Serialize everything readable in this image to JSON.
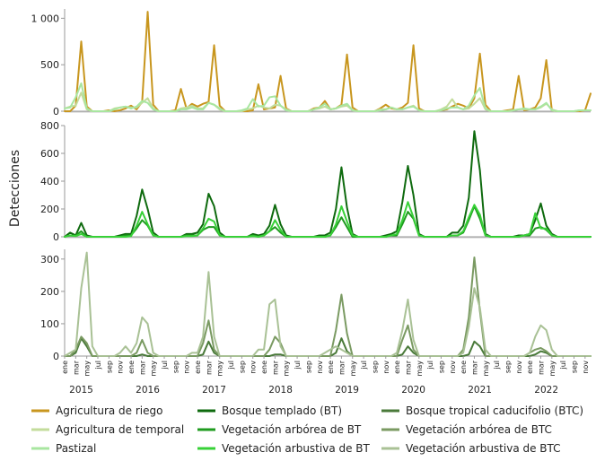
{
  "chart_data": {
    "type": "line",
    "ylabel": "Detecciones",
    "month_tick_labels": [
      "ene",
      "mar",
      "may",
      "jul",
      "sep",
      "nov"
    ],
    "years": [
      "2015",
      "2016",
      "2017",
      "2018",
      "2019",
      "2020",
      "2021",
      "2022"
    ],
    "months_per_series": 96,
    "legend_placement": "bottom",
    "colors": {
      "Agricultura de riego": "#c8961e",
      "Agricultura de temporal": "#c3dc9b",
      "Pastizal": "#a8e6a0",
      "Bosque templado (BT)": "#0e6a0e",
      "Vegetación arbórea de BT": "#1f9b1f",
      "Vegetación arbustiva de BT": "#37d137",
      "Bosque tropical caducifolio (BTC)": "#4a7a3a",
      "Vegetación arbórea de BTC": "#7a9a62",
      "Vegetación arbustiva de BTC": "#a9c195"
    },
    "panels": [
      {
        "id": "top",
        "ylim": [
          0,
          1100
        ],
        "yticks": [
          0,
          500,
          1000
        ],
        "ytick_labels": [
          "0",
          "500",
          "1 000"
        ],
        "series": [
          {
            "name": "Agricultura de riego",
            "values": [
              0,
              0,
              60,
              750,
              50,
              0,
              0,
              0,
              10,
              0,
              10,
              30,
              60,
              20,
              100,
              1070,
              70,
              0,
              0,
              0,
              10,
              240,
              30,
              80,
              50,
              80,
              100,
              710,
              60,
              0,
              0,
              0,
              0,
              0,
              10,
              290,
              20,
              30,
              40,
              380,
              30,
              0,
              0,
              0,
              0,
              30,
              40,
              110,
              20,
              30,
              70,
              610,
              40,
              0,
              0,
              0,
              0,
              30,
              70,
              30,
              20,
              40,
              90,
              710,
              30,
              0,
              0,
              0,
              10,
              20,
              50,
              80,
              60,
              30,
              140,
              620,
              70,
              0,
              0,
              0,
              10,
              20,
              380,
              10,
              20,
              40,
              140,
              550,
              10,
              0,
              0,
              0,
              0,
              0,
              10,
              190
            ]
          },
          {
            "name": "Agricultura de temporal",
            "values": [
              30,
              50,
              60,
              200,
              20,
              0,
              0,
              0,
              0,
              30,
              40,
              50,
              40,
              40,
              90,
              140,
              30,
              0,
              0,
              0,
              0,
              30,
              40,
              60,
              30,
              30,
              90,
              70,
              20,
              0,
              0,
              0,
              0,
              20,
              30,
              60,
              40,
              30,
              70,
              60,
              20,
              0,
              0,
              0,
              0,
              20,
              30,
              50,
              20,
              30,
              50,
              60,
              10,
              0,
              0,
              0,
              0,
              20,
              20,
              40,
              20,
              20,
              40,
              60,
              10,
              0,
              0,
              0,
              20,
              50,
              130,
              40,
              20,
              30,
              80,
              140,
              20,
              0,
              0,
              0,
              0,
              10,
              20,
              20,
              20,
              20,
              40,
              80,
              20,
              0,
              0,
              0,
              0,
              10,
              10,
              10
            ]
          },
          {
            "name": "Pastizal",
            "values": [
              30,
              40,
              150,
              300,
              30,
              0,
              0,
              0,
              0,
              20,
              40,
              50,
              30,
              50,
              110,
              90,
              20,
              0,
              0,
              0,
              0,
              20,
              20,
              40,
              20,
              20,
              90,
              70,
              30,
              0,
              0,
              0,
              10,
              30,
              130,
              50,
              60,
              150,
              160,
              60,
              10,
              0,
              0,
              0,
              0,
              20,
              40,
              80,
              20,
              30,
              60,
              80,
              10,
              0,
              0,
              0,
              0,
              10,
              20,
              40,
              20,
              20,
              40,
              50,
              10,
              0,
              0,
              0,
              10,
              30,
              40,
              40,
              20,
              60,
              170,
              250,
              30,
              0,
              0,
              0,
              0,
              10,
              20,
              30,
              20,
              20,
              50,
              90,
              10,
              0,
              0,
              0,
              0,
              10,
              10,
              10
            ]
          }
        ]
      },
      {
        "id": "middle",
        "ylim": [
          0,
          800
        ],
        "yticks": [
          0,
          200,
          400,
          600,
          800
        ],
        "ytick_labels": [
          "0",
          "200",
          "400",
          "600",
          "800"
        ],
        "series": [
          {
            "name": "Bosque templado (BT)",
            "values": [
              0,
              30,
              10,
              100,
              10,
              0,
              0,
              0,
              0,
              0,
              10,
              20,
              20,
              150,
              340,
              200,
              30,
              0,
              0,
              0,
              0,
              0,
              20,
              20,
              30,
              90,
              310,
              220,
              30,
              0,
              0,
              0,
              0,
              0,
              20,
              10,
              20,
              80,
              230,
              90,
              10,
              0,
              0,
              0,
              0,
              0,
              10,
              10,
              30,
              200,
              500,
              210,
              20,
              0,
              0,
              0,
              0,
              0,
              10,
              20,
              40,
              250,
              510,
              300,
              20,
              0,
              0,
              0,
              0,
              0,
              30,
              30,
              80,
              280,
              760,
              480,
              20,
              0,
              0,
              0,
              0,
              0,
              10,
              10,
              20,
              120,
              240,
              80,
              20,
              0,
              0,
              0,
              0,
              0,
              0,
              0
            ]
          },
          {
            "name": "Vegetación arbórea de BT",
            "values": [
              0,
              10,
              10,
              40,
              0,
              0,
              0,
              0,
              0,
              0,
              0,
              10,
              10,
              60,
              120,
              80,
              10,
              0,
              0,
              0,
              0,
              0,
              10,
              10,
              10,
              50,
              70,
              70,
              10,
              0,
              0,
              0,
              0,
              0,
              10,
              0,
              10,
              40,
              70,
              30,
              0,
              0,
              0,
              0,
              0,
              0,
              0,
              0,
              10,
              70,
              140,
              70,
              0,
              0,
              0,
              0,
              0,
              0,
              0,
              10,
              10,
              90,
              180,
              130,
              10,
              0,
              0,
              0,
              0,
              0,
              10,
              10,
              30,
              120,
              220,
              130,
              10,
              0,
              0,
              0,
              0,
              0,
              0,
              10,
              10,
              60,
              70,
              50,
              10,
              0,
              0,
              0,
              0,
              0,
              0,
              0
            ]
          },
          {
            "name": "Vegetación arbustiva de BT",
            "values": [
              0,
              10,
              5,
              20,
              0,
              0,
              0,
              0,
              0,
              0,
              0,
              0,
              5,
              80,
              180,
              90,
              10,
              0,
              0,
              0,
              0,
              0,
              5,
              5,
              10,
              60,
              130,
              110,
              10,
              0,
              0,
              0,
              0,
              0,
              5,
              0,
              10,
              40,
              120,
              50,
              0,
              0,
              0,
              0,
              0,
              0,
              0,
              0,
              10,
              90,
              220,
              110,
              10,
              0,
              0,
              0,
              0,
              0,
              0,
              10,
              20,
              120,
              250,
              140,
              10,
              0,
              0,
              0,
              0,
              0,
              10,
              10,
              40,
              140,
              230,
              160,
              10,
              0,
              0,
              0,
              0,
              0,
              0,
              10,
              20,
              170,
              60,
              60,
              10,
              0,
              0,
              0,
              0,
              0,
              0,
              0
            ]
          }
        ]
      },
      {
        "id": "bottom",
        "ylim": [
          0,
          330
        ],
        "yticks": [
          0,
          100,
          200,
          300
        ],
        "ytick_labels": [
          "0",
          "100",
          "200",
          "300"
        ],
        "series": [
          {
            "name": "Bosque tropical caducifolio (BTC)",
            "values": [
              0,
              0,
              10,
              55,
              30,
              0,
              0,
              0,
              0,
              0,
              0,
              0,
              0,
              0,
              5,
              0,
              0,
              0,
              0,
              0,
              0,
              0,
              0,
              0,
              0,
              5,
              45,
              10,
              0,
              0,
              0,
              0,
              0,
              0,
              0,
              0,
              0,
              0,
              5,
              5,
              0,
              0,
              0,
              0,
              0,
              0,
              0,
              0,
              0,
              10,
              55,
              15,
              0,
              0,
              0,
              0,
              0,
              0,
              0,
              0,
              0,
              5,
              30,
              10,
              0,
              0,
              0,
              0,
              0,
              0,
              0,
              0,
              0,
              5,
              45,
              30,
              0,
              0,
              0,
              0,
              0,
              0,
              0,
              0,
              0,
              5,
              15,
              10,
              0,
              0,
              0,
              0,
              0,
              0,
              0,
              0
            ]
          },
          {
            "name": "Vegetación arbórea de BTC",
            "values": [
              0,
              0,
              20,
              60,
              40,
              0,
              0,
              0,
              0,
              0,
              0,
              0,
              0,
              10,
              50,
              10,
              0,
              0,
              0,
              0,
              0,
              0,
              0,
              0,
              0,
              40,
              110,
              20,
              0,
              0,
              0,
              0,
              0,
              0,
              0,
              0,
              0,
              20,
              60,
              40,
              0,
              0,
              0,
              0,
              0,
              0,
              0,
              0,
              0,
              80,
              190,
              70,
              0,
              0,
              0,
              0,
              0,
              0,
              0,
              0,
              0,
              50,
              95,
              20,
              0,
              0,
              0,
              0,
              0,
              0,
              0,
              0,
              20,
              120,
              305,
              140,
              0,
              0,
              0,
              0,
              0,
              0,
              0,
              0,
              10,
              20,
              25,
              15,
              0,
              0,
              0,
              0,
              0,
              0,
              0,
              0
            ]
          },
          {
            "name": "Vegetación arbustiva de BTC",
            "values": [
              0,
              10,
              20,
              210,
              320,
              30,
              0,
              0,
              0,
              0,
              10,
              30,
              10,
              40,
              120,
              100,
              10,
              0,
              0,
              0,
              0,
              0,
              0,
              10,
              10,
              60,
              260,
              60,
              0,
              0,
              0,
              0,
              0,
              0,
              0,
              20,
              20,
              160,
              175,
              30,
              0,
              0,
              0,
              0,
              0,
              0,
              0,
              10,
              20,
              30,
              20,
              10,
              0,
              0,
              0,
              0,
              0,
              0,
              0,
              0,
              10,
              80,
              175,
              50,
              0,
              0,
              0,
              0,
              0,
              0,
              0,
              0,
              10,
              90,
              210,
              150,
              20,
              0,
              0,
              0,
              0,
              0,
              0,
              0,
              10,
              60,
              95,
              80,
              20,
              0,
              0,
              0,
              0,
              0,
              0,
              0
            ]
          }
        ]
      }
    ]
  }
}
